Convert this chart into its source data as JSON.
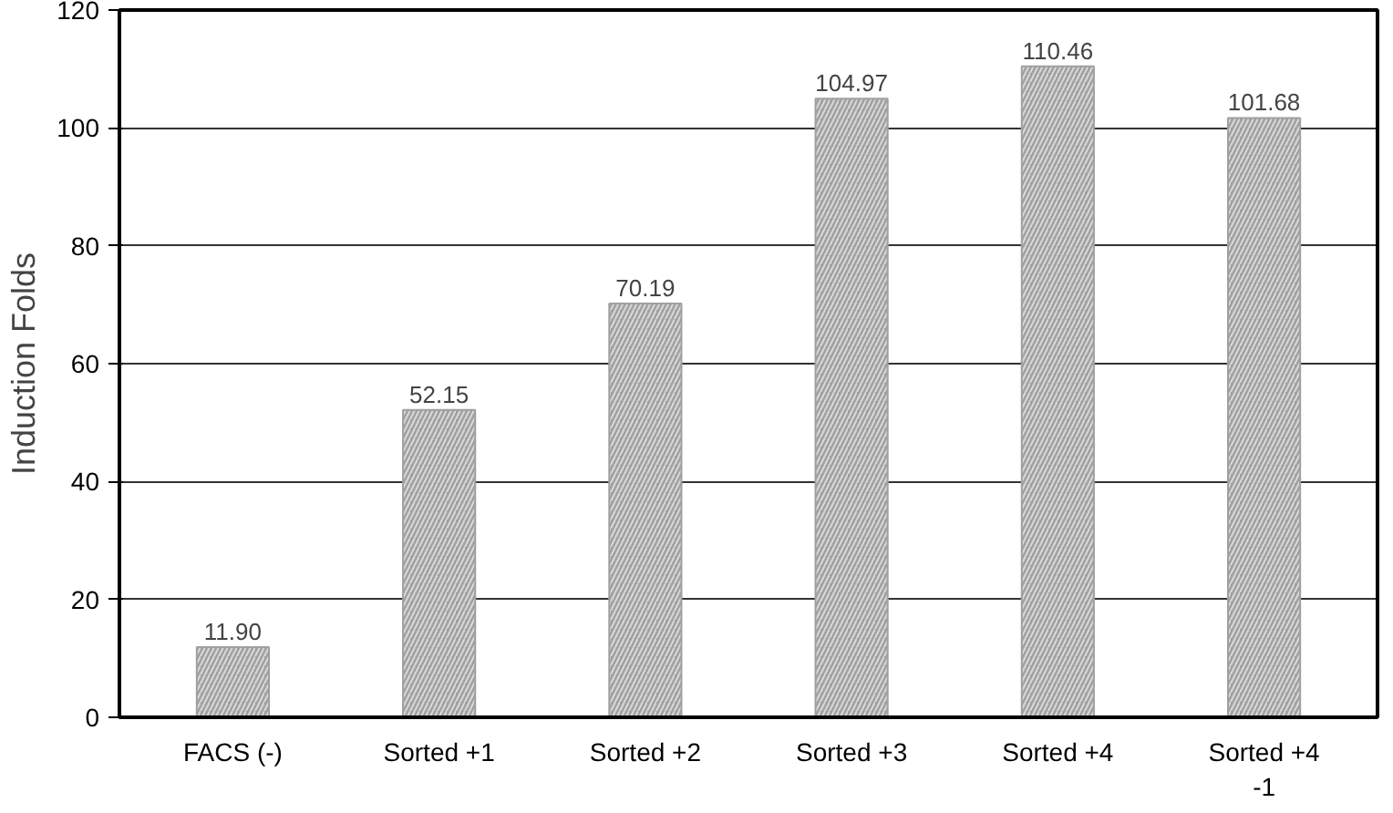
{
  "chart_data": {
    "type": "bar",
    "ylabel": "Induction Folds",
    "categories": [
      "FACS (-)",
      "Sorted +1",
      "Sorted +2",
      "Sorted +3",
      "Sorted +4",
      "Sorted +4\n-1"
    ],
    "values": [
      11.9,
      52.15,
      70.19,
      104.97,
      110.46,
      101.68
    ],
    "value_labels": [
      "11.90",
      "52.15",
      "70.19",
      "104.97",
      "110.46",
      "101.68"
    ],
    "color": "#a0a0a0",
    "ylim": [
      0,
      120
    ],
    "yticks": [
      0,
      20,
      40,
      60,
      80,
      100,
      120
    ],
    "grid": "y"
  }
}
